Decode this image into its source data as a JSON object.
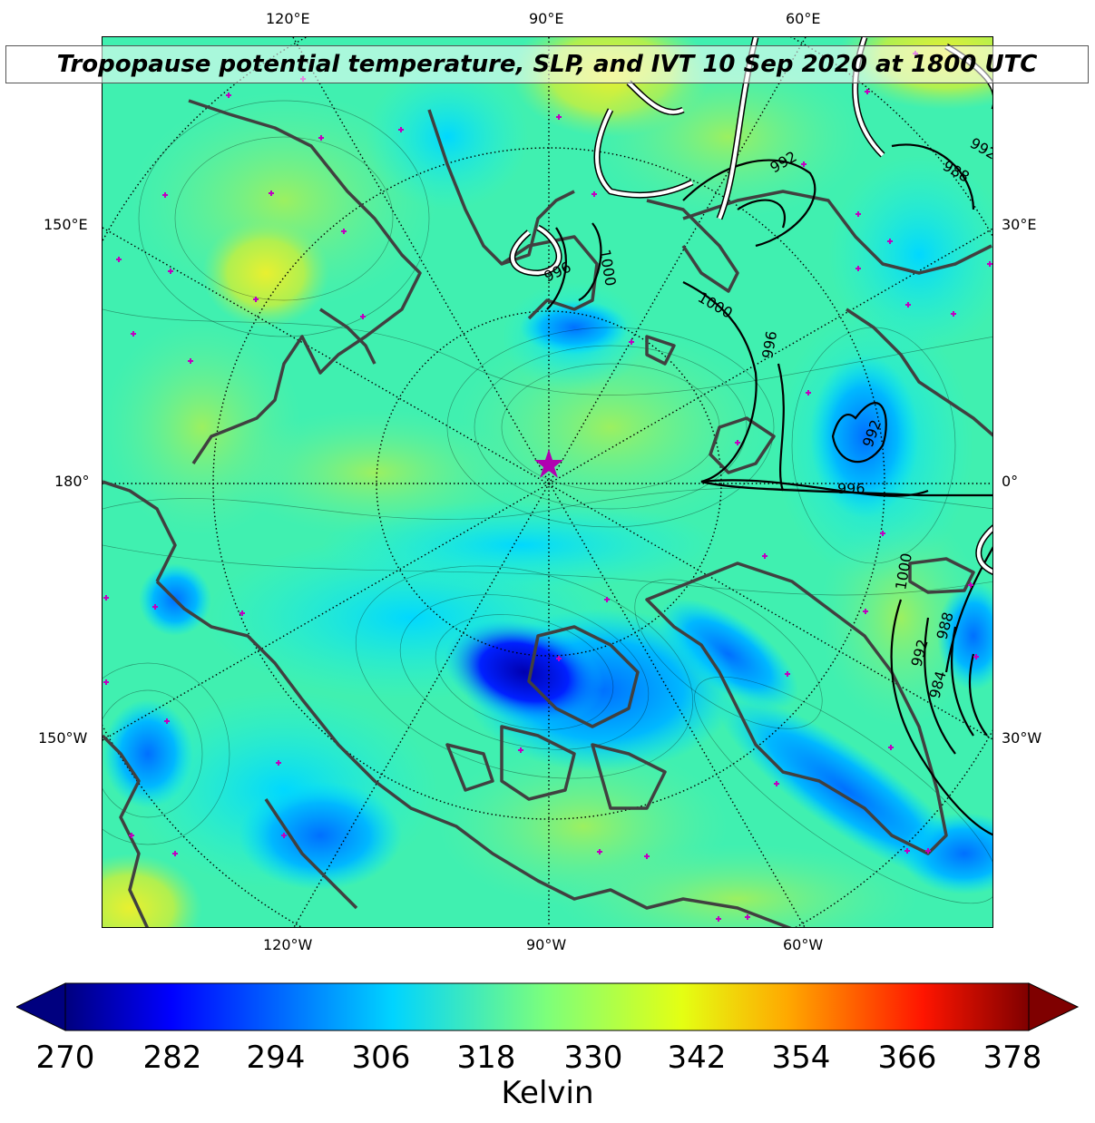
{
  "title": "Tropopause potential temperature, SLP, and IVT 10 Sep 2020 at 1800 UTC",
  "lon_labels": {
    "top": [
      "120°E",
      "90°E",
      "60°E"
    ],
    "bottom": [
      "120°W",
      "90°W",
      "60°W"
    ],
    "left": [
      "150°E",
      "180°",
      "150°W"
    ],
    "right": [
      "30°E",
      "0°",
      "30°W"
    ]
  },
  "slp_contour_labels": [
    "1000",
    "996",
    "1000",
    "992",
    "988",
    "992",
    "996",
    "992",
    "996",
    "1000",
    "992",
    "988",
    "984"
  ],
  "colorbar": {
    "label": "Kelvin",
    "ticks": [
      "270",
      "282",
      "294",
      "306",
      "318",
      "330",
      "342",
      "354",
      "366",
      "378"
    ],
    "min": 270,
    "max": 378,
    "colormap": "jet",
    "extend": "both"
  },
  "colors": {
    "coast": "#404040",
    "station_marker": "#c000c0",
    "pole_star": "#b000b0",
    "slp_contour": "#000000",
    "ivt_contour": "#ffffff"
  }
}
